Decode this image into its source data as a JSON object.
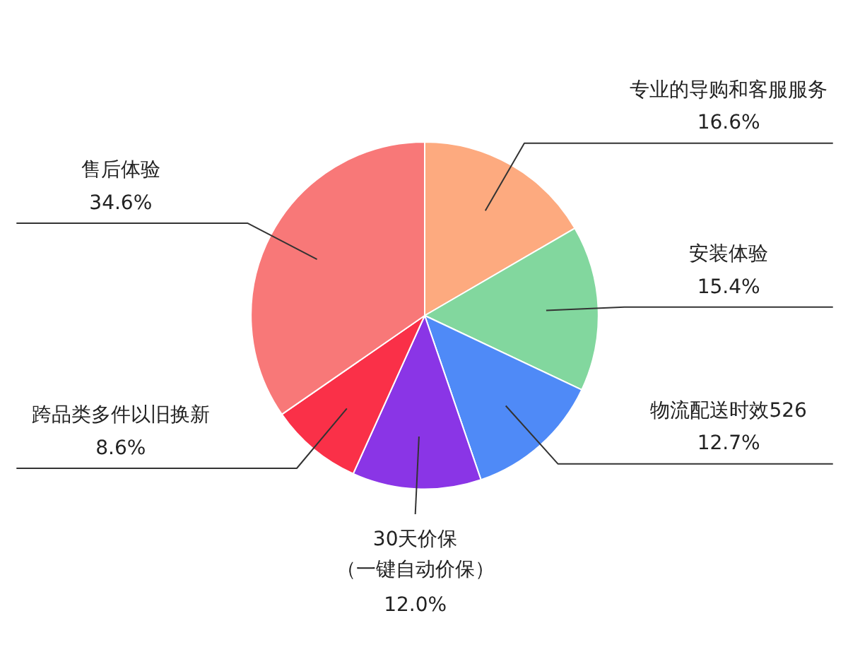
{
  "chart_data": {
    "type": "pie",
    "categories": [
      "专业的导购和客服服务",
      "安装体验",
      "物流配送时效526",
      "30天价保（一键自动价保）",
      "跨品类多件以旧换新",
      "售后体验"
    ],
    "values": [
      16.6,
      15.4,
      12.7,
      12.0,
      8.6,
      34.6
    ],
    "colors": [
      "#fdaa7f",
      "#82d79e",
      "#4f8af7",
      "#8a35e6",
      "#fa3048",
      "#f87878"
    ],
    "value_labels": [
      "16.6%",
      "15.4%",
      "12.7%",
      "12.0%",
      "8.6%",
      "34.6%"
    ]
  }
}
